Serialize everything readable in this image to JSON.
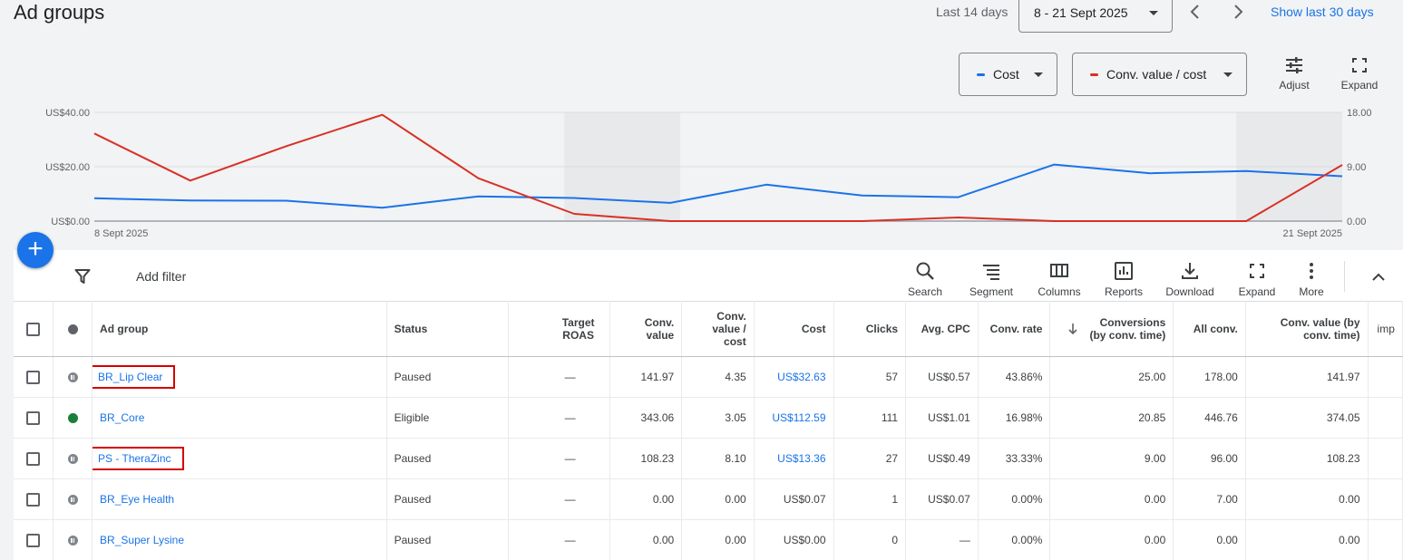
{
  "header": {
    "title": "Ad groups",
    "date_label": "Last 14 days",
    "date_range": "8 - 21 Sept 2025",
    "show_last": "Show last 30 days"
  },
  "chart_controls": {
    "metric1": "Cost",
    "metric1_color": "#1a73e8",
    "metric2": "Conv. value / cost",
    "metric2_color": "#d93025",
    "adjust": "Adjust",
    "expand": "Expand"
  },
  "chart_data": {
    "type": "line",
    "x": [
      "8 Sept 2025",
      "9 Sept 2025",
      "10 Sept 2025",
      "11 Sept 2025",
      "12 Sept 2025",
      "13 Sept 2025",
      "14 Sept 2025",
      "15 Sept 2025",
      "16 Sept 2025",
      "17 Sept 2025",
      "18 Sept 2025",
      "19 Sept 2025",
      "20 Sept 2025",
      "21 Sept 2025"
    ],
    "x_tick_labels": [
      "8 Sept 2025",
      "21 Sept 2025"
    ],
    "y_left_ticks": [
      "US$0.00",
      "US$20.00",
      "US$40.00"
    ],
    "y_left_range": [
      0,
      40
    ],
    "y_right_ticks": [
      "0.00",
      "9.00",
      "18.00"
    ],
    "y_right_range": [
      0,
      18
    ],
    "shaded_x_ranges": [
      [
        "13 Sept 2025",
        "14 Sept 2025"
      ],
      [
        "20 Sept 2025",
        "21 Sept 2025"
      ]
    ],
    "series": [
      {
        "name": "Cost",
        "axis": "left",
        "color": "#1a73e8",
        "values": [
          8.4,
          7.6,
          7.5,
          4.9,
          9.1,
          8.5,
          6.7,
          13.4,
          9.4,
          8.8,
          20.8,
          17.6,
          18.4,
          16.5
        ]
      },
      {
        "name": "Conv. value / cost",
        "axis": "right",
        "color": "#d93025",
        "values": [
          14.5,
          6.7,
          12.4,
          17.6,
          7.1,
          1.2,
          0.0,
          0.0,
          0.0,
          0.6,
          0.0,
          0.0,
          0.0,
          9.3
        ]
      }
    ]
  },
  "toolbar": {
    "add_filter": "Add filter",
    "buttons": [
      "Search",
      "Segment",
      "Columns",
      "Reports",
      "Download",
      "Expand",
      "More"
    ]
  },
  "table": {
    "columns": [
      "Ad group",
      "Status",
      "Target ROAS",
      "Conv. value",
      "Conv. value / cost",
      "Cost",
      "Clicks",
      "Avg. CPC",
      "Conv. rate",
      "Conversions (by conv. time)",
      "All conv.",
      "Conv. value (by conv. time)",
      "imp"
    ],
    "rows": [
      {
        "name": "BR_Lip Clear",
        "state": "paused",
        "status": "Paused",
        "target_roas": "—",
        "conv_value": "141.97",
        "conv_value_cost": "4.35",
        "cost": "US$32.63",
        "cost_link": true,
        "clicks": "57",
        "avg_cpc": "US$0.57",
        "conv_rate": "43.86%",
        "conversions": "25.00",
        "all_conv": "178.00",
        "conv_value_time": "141.97",
        "highlight": true
      },
      {
        "name": "BR_Core",
        "state": "eligible",
        "status": "Eligible",
        "target_roas": "—",
        "conv_value": "343.06",
        "conv_value_cost": "3.05",
        "cost": "US$112.59",
        "cost_link": true,
        "clicks": "111",
        "avg_cpc": "US$1.01",
        "conv_rate": "16.98%",
        "conversions": "20.85",
        "all_conv": "446.76",
        "conv_value_time": "374.05",
        "highlight": false
      },
      {
        "name": "PS - TheraZinc",
        "state": "paused",
        "status": "Paused",
        "target_roas": "—",
        "conv_value": "108.23",
        "conv_value_cost": "8.10",
        "cost": "US$13.36",
        "cost_link": true,
        "clicks": "27",
        "avg_cpc": "US$0.49",
        "conv_rate": "33.33%",
        "conversions": "9.00",
        "all_conv": "96.00",
        "conv_value_time": "108.23",
        "highlight": true
      },
      {
        "name": "BR_Eye Health",
        "state": "paused",
        "status": "Paused",
        "target_roas": "—",
        "conv_value": "0.00",
        "conv_value_cost": "0.00",
        "cost": "US$0.07",
        "cost_link": false,
        "clicks": "1",
        "avg_cpc": "US$0.07",
        "conv_rate": "0.00%",
        "conversions": "0.00",
        "all_conv": "7.00",
        "conv_value_time": "0.00",
        "highlight": false
      },
      {
        "name": "BR_Super Lysine",
        "state": "paused",
        "status": "Paused",
        "target_roas": "—",
        "conv_value": "0.00",
        "conv_value_cost": "0.00",
        "cost": "US$0.00",
        "cost_link": false,
        "clicks": "0",
        "avg_cpc": "—",
        "conv_rate": "0.00%",
        "conversions": "0.00",
        "all_conv": "0.00",
        "conv_value_time": "0.00",
        "highlight": false
      }
    ]
  }
}
